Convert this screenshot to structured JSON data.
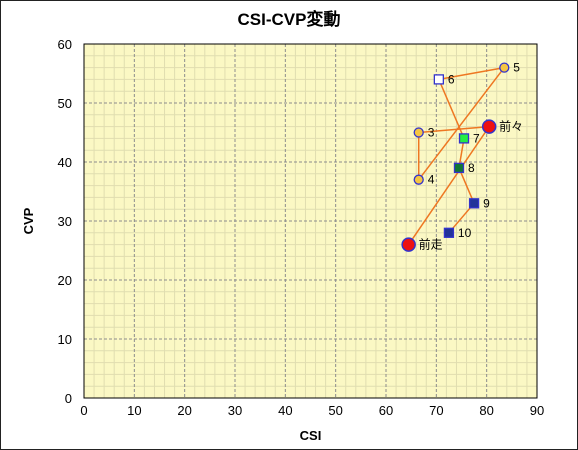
{
  "chart_data": {
    "type": "scatter",
    "title": "CSI-CVP変動",
    "xlabel": "CSI",
    "ylabel": "CVP",
    "xlim": [
      0,
      90
    ],
    "ylim": [
      0,
      60
    ],
    "xticks": [
      0,
      10,
      20,
      30,
      40,
      50,
      60,
      70,
      80,
      90
    ],
    "yticks": [
      0,
      10,
      20,
      30,
      40,
      50,
      60
    ],
    "grid": true,
    "colors": {
      "plot_bg": "#fbf8c4",
      "major_grid": "#8c8c8c",
      "minor_grid": "#e0ddb0",
      "line": "#ee7722",
      "circle_fill": "#f5c542",
      "circle_stroke": "#3333cc",
      "red_fill": "#ee1111",
      "light_green": "#22ee44",
      "dark_green": "#117733",
      "navy": "#223399",
      "white": "#ffffff"
    },
    "points": [
      {
        "label": "前走",
        "x": 64.5,
        "y": 26,
        "marker": "circle-large",
        "fill": "red_fill"
      },
      {
        "label": "前々",
        "x": 80.5,
        "y": 46,
        "marker": "circle-large",
        "fill": "red_fill"
      },
      {
        "label": "3",
        "x": 66.5,
        "y": 45,
        "marker": "circle",
        "fill": "circle_fill"
      },
      {
        "label": "4",
        "x": 66.5,
        "y": 37,
        "marker": "circle",
        "fill": "circle_fill"
      },
      {
        "label": "5",
        "x": 83.5,
        "y": 56,
        "marker": "circle",
        "fill": "circle_fill"
      },
      {
        "label": "6",
        "x": 70.5,
        "y": 54,
        "marker": "square",
        "fill": "white"
      },
      {
        "label": "7",
        "x": 75.5,
        "y": 44,
        "marker": "square",
        "fill": "light_green"
      },
      {
        "label": "8",
        "x": 74.5,
        "y": 39,
        "marker": "square",
        "fill": "dark_green"
      },
      {
        "label": "9",
        "x": 77.5,
        "y": 33,
        "marker": "square",
        "fill": "navy"
      },
      {
        "label": "10",
        "x": 72.5,
        "y": 28,
        "marker": "square",
        "fill": "navy"
      }
    ],
    "path_order": [
      "前走",
      "前々",
      "3",
      "4",
      "5",
      "6",
      "7",
      "8",
      "9",
      "10"
    ]
  }
}
